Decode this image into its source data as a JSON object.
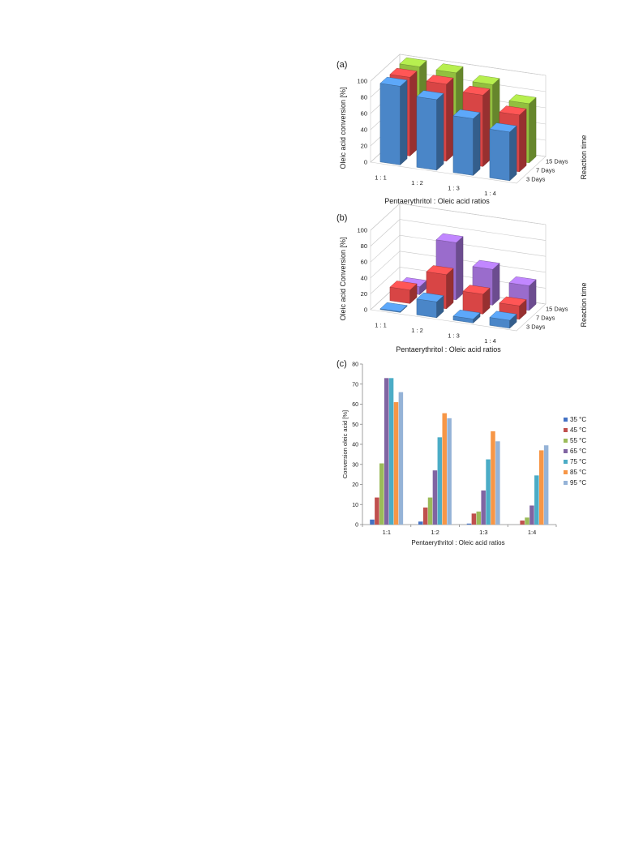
{
  "chart_data": [
    {
      "panel_label": "(a)",
      "type": "bar",
      "style": "3d",
      "categories": [
        "1 : 1",
        "1 : 2",
        "1 : 3",
        "1 : 4"
      ],
      "depth_categories": [
        "3 Days",
        "7 Days",
        "15 Days"
      ],
      "depth_label": "Reaction time",
      "series": [
        {
          "name": "3 Days",
          "color": "#4a86c8",
          "values": [
            97,
            87,
            70,
            60
          ]
        },
        {
          "name": "7 Days",
          "color": "#d84545",
          "values": [
            97,
            95,
            88,
            70
          ]
        },
        {
          "name": "15 Days",
          "color": "#92bf3f",
          "values": [
            99,
            98,
            90,
            73
          ]
        }
      ],
      "ylim": [
        0,
        100
      ],
      "yticks": [
        0,
        20,
        40,
        60,
        80,
        100
      ],
      "xlabel": "Pentaerythritol : Oleic acid ratios",
      "ylabel": "Oleic acid conversion [%]",
      "grid": true
    },
    {
      "panel_label": "(b)",
      "type": "bar",
      "style": "3d",
      "categories": [
        "1 : 1",
        "1 : 2",
        "1 : 3",
        "1 : 4"
      ],
      "depth_categories": [
        "3 Days",
        "7 Days",
        "15 Days"
      ],
      "depth_label": "Reaction time",
      "series": [
        {
          "name": "3 Days",
          "color": "#4a86c8",
          "values": [
            1,
            20,
            5,
            10
          ]
        },
        {
          "name": "7 Days",
          "color": "#d84545",
          "values": [
            17,
            43,
            25,
            17
          ]
        },
        {
          "name": "15 Days",
          "color": "#9a6ccc",
          "values": [
            10,
            72,
            45,
            31
          ]
        }
      ],
      "ylim": [
        0,
        100
      ],
      "yticks": [
        0,
        20,
        40,
        60,
        80,
        100
      ],
      "xlabel": "Pentaerythritol : Oleic acid ratios",
      "ylabel": "Oleic acid Conversion [%]",
      "grid": true
    },
    {
      "panel_label": "(c)",
      "type": "bar",
      "categories": [
        "1:1",
        "1:2",
        "1:3",
        "1:4"
      ],
      "series": [
        {
          "name": "35 °C",
          "color": "#4472c4",
          "values": [
            2.5,
            1.5,
            0.5,
            0
          ]
        },
        {
          "name": "45 °C",
          "color": "#c0504d",
          "values": [
            13.5,
            8.5,
            5.5,
            2
          ]
        },
        {
          "name": "55 °C",
          "color": "#9bbb59",
          "values": [
            30.5,
            13.5,
            6.5,
            3.5
          ]
        },
        {
          "name": "65 °C",
          "color": "#8064a2",
          "values": [
            73,
            27,
            17,
            9.5
          ]
        },
        {
          "name": "75 °C",
          "color": "#4bacc6",
          "values": [
            73,
            43.5,
            32.5,
            24.5
          ]
        },
        {
          "name": "85 °C",
          "color": "#f79646",
          "values": [
            61,
            55.5,
            46.5,
            37
          ]
        },
        {
          "name": "95 °C",
          "color": "#95b3d7",
          "values": [
            66,
            53,
            41.5,
            39.5
          ]
        }
      ],
      "ylim": [
        0,
        80
      ],
      "yticks": [
        0,
        10,
        20,
        30,
        40,
        50,
        60,
        70,
        80
      ],
      "xlabel": "Pentaerythritol : Oleic acid ratios",
      "ylabel": "Conversion oleic acid [%]",
      "legend": "right",
      "grid": false
    }
  ]
}
